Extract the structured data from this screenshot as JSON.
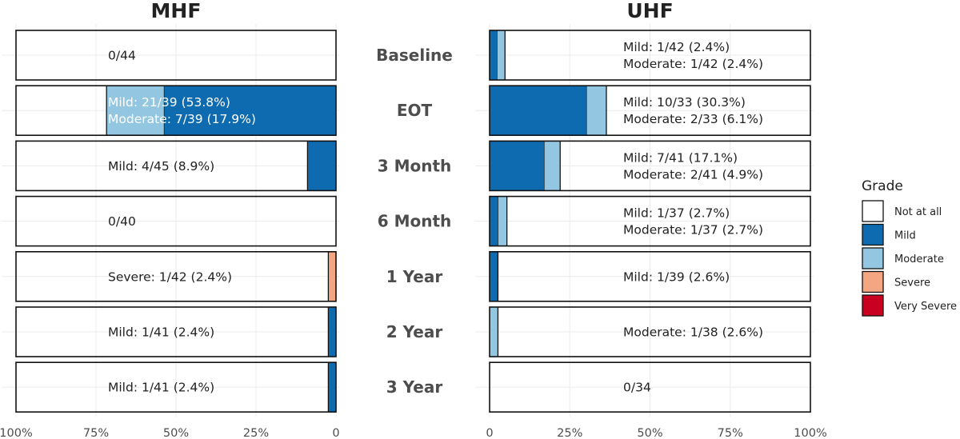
{
  "chart_data": {
    "type": "bar",
    "orientation": "horizontal",
    "stacked": true,
    "grid": true,
    "legend_position": "right",
    "categories": [
      "Baseline",
      "EOT",
      "3 Month",
      "6 Month",
      "1 Year",
      "2 Year",
      "3 Year"
    ],
    "grades": [
      "Not at all",
      "Mild",
      "Moderate",
      "Severe",
      "Very Severe"
    ],
    "legend": {
      "title": "Grade",
      "entries": [
        {
          "label": "Not at all",
          "color": "#ffffff"
        },
        {
          "label": "Mild",
          "color": "#0e6bb0"
        },
        {
          "label": "Moderate",
          "color": "#93c6e0"
        },
        {
          "label": "Severe",
          "color": "#f4a582"
        },
        {
          "label": "Very Severe",
          "color": "#ca0020"
        }
      ]
    },
    "panels": [
      {
        "title": "MHF",
        "direction": "reversed",
        "xlim": [
          0,
          100
        ],
        "tick_labels": [
          "100%",
          "75%",
          "50%",
          "25%",
          "0"
        ],
        "rows": [
          {
            "category": "Baseline",
            "mild": 0,
            "moderate": 0,
            "severe": 0,
            "very_severe": 0,
            "label": [
              "0/44"
            ]
          },
          {
            "category": "EOT",
            "mild": 53.8,
            "moderate": 17.9,
            "severe": 0,
            "very_severe": 0,
            "label": [
              "Mild: 21/39 (53.8%)",
              "Moderate: 7/39 (17.9%)"
            ]
          },
          {
            "category": "3 Month",
            "mild": 8.9,
            "moderate": 0,
            "severe": 0,
            "very_severe": 0,
            "label": [
              "Mild: 4/45 (8.9%)"
            ]
          },
          {
            "category": "6 Month",
            "mild": 0,
            "moderate": 0,
            "severe": 0,
            "very_severe": 0,
            "label": [
              "0/40"
            ]
          },
          {
            "category": "1 Year",
            "mild": 0,
            "moderate": 0,
            "severe": 2.4,
            "very_severe": 0,
            "label": [
              "Severe: 1/42 (2.4%)"
            ]
          },
          {
            "category": "2 Year",
            "mild": 2.4,
            "moderate": 0,
            "severe": 0,
            "very_severe": 0,
            "label": [
              "Mild: 1/41 (2.4%)"
            ]
          },
          {
            "category": "3 Year",
            "mild": 2.4,
            "moderate": 0,
            "severe": 0,
            "very_severe": 0,
            "label": [
              "Mild: 1/41 (2.4%)"
            ]
          }
        ]
      },
      {
        "title": "UHF",
        "direction": "normal",
        "xlim": [
          0,
          100
        ],
        "tick_labels": [
          "0",
          "25%",
          "50%",
          "75%",
          "100%"
        ],
        "rows": [
          {
            "category": "Baseline",
            "mild": 2.4,
            "moderate": 2.4,
            "severe": 0,
            "very_severe": 0,
            "label": [
              "Mild: 1/42 (2.4%)",
              "Moderate: 1/42 (2.4%)"
            ]
          },
          {
            "category": "EOT",
            "mild": 30.3,
            "moderate": 6.1,
            "severe": 0,
            "very_severe": 0,
            "label": [
              "Mild: 10/33 (30.3%)",
              "Moderate: 2/33 (6.1%)"
            ]
          },
          {
            "category": "3 Month",
            "mild": 17.1,
            "moderate": 4.9,
            "severe": 0,
            "very_severe": 0,
            "label": [
              "Mild: 7/41 (17.1%)",
              "Moderate: 2/41 (4.9%)"
            ]
          },
          {
            "category": "6 Month",
            "mild": 2.7,
            "moderate": 2.7,
            "severe": 0,
            "very_severe": 0,
            "label": [
              "Mild: 1/37 (2.7%)",
              "Moderate: 1/37 (2.7%)"
            ]
          },
          {
            "category": "1 Year",
            "mild": 2.6,
            "moderate": 0,
            "severe": 0,
            "very_severe": 0,
            "label": [
              "Mild: 1/39 (2.6%)"
            ]
          },
          {
            "category": "2 Year",
            "mild": 0,
            "moderate": 2.6,
            "severe": 0,
            "very_severe": 0,
            "label": [
              "Moderate: 1/38 (2.6%)"
            ]
          },
          {
            "category": "3 Year",
            "mild": 0,
            "moderate": 0,
            "severe": 0,
            "very_severe": 0,
            "label": [
              "0/34"
            ]
          }
        ]
      }
    ]
  }
}
